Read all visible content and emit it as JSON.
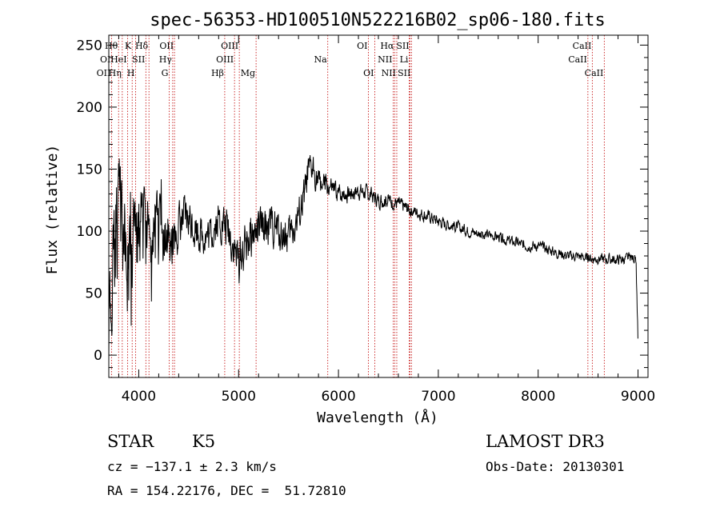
{
  "chart_data": {
    "type": "line",
    "title": "spec-56353-HD100510N522216B02_sp06-180.fits",
    "xlabel": "Wavelength (Å)",
    "ylabel": "Flux (relative)",
    "xlim": [
      3700,
      9100
    ],
    "ylim": [
      -18,
      258
    ],
    "xticks": [
      4000,
      5000,
      6000,
      7000,
      8000,
      9000
    ],
    "yticks": [
      0,
      50,
      100,
      150,
      200,
      250
    ],
    "spectrum_anchors": {
      "x": [
        3700,
        3760,
        3800,
        3850,
        3900,
        3950,
        4000,
        4050,
        4100,
        4150,
        4200,
        4250,
        4300,
        4400,
        4500,
        4600,
        4700,
        4800,
        4900,
        5000,
        5100,
        5200,
        5300,
        5400,
        5500,
        5600,
        5650,
        5700,
        5750,
        5800,
        5900,
        6000,
        6100,
        6200,
        6300,
        6400,
        6500,
        6600,
        6700,
        6800,
        6900,
        7000,
        7100,
        7200,
        7300,
        7400,
        7500,
        7600,
        7700,
        7800,
        7900,
        8000,
        8100,
        8200,
        8300,
        8400,
        8500,
        8600,
        8700,
        8800,
        8900,
        8980,
        9000
      ],
      "y": [
        20,
        90,
        100,
        95,
        70,
        85,
        100,
        105,
        95,
        110,
        100,
        95,
        85,
        105,
        110,
        100,
        95,
        110,
        100,
        75,
        95,
        100,
        105,
        100,
        95,
        110,
        125,
        145,
        150,
        140,
        135,
        130,
        130,
        133,
        130,
        125,
        125,
        122,
        118,
        115,
        112,
        108,
        105,
        103,
        100,
        98,
        97,
        95,
        92,
        90,
        88,
        88,
        85,
        82,
        80,
        80,
        78,
        78,
        77,
        77,
        78,
        78,
        10
      ]
    },
    "noise_amplitude": {
      "x": [
        3700,
        3800,
        3900,
        4000,
        4100,
        4200,
        4300,
        4400,
        4600,
        4800,
        5000,
        5300,
        5600,
        5700,
        5800,
        6000,
        6400,
        6800,
        7500,
        8500,
        9000
      ],
      "y": [
        30,
        45,
        40,
        35,
        30,
        25,
        22,
        18,
        15,
        15,
        18,
        15,
        15,
        14,
        10,
        7,
        6,
        5,
        4,
        4,
        4
      ]
    },
    "emission_lines": [
      {
        "label": "Hθ",
        "wavelength": 3798,
        "row": 1
      },
      {
        "label": "K",
        "wavelength": 3934,
        "row": 1
      },
      {
        "label": "Hδ",
        "wavelength": 4102,
        "row": 1
      },
      {
        "label": "OII",
        "wavelength": 4358,
        "row": 1
      },
      {
        "label": "OIII",
        "wavelength": 5007,
        "row": 1
      },
      {
        "label": "OI",
        "wavelength": 6300,
        "row": 1
      },
      {
        "label": "Hα",
        "wavelength": 6563,
        "row": 1
      },
      {
        "label": "SII",
        "wavelength": 6717,
        "row": 1
      },
      {
        "label": "CaII",
        "wavelength": 8542,
        "row": 1
      },
      {
        "label": "OI",
        "wavelength": 3727,
        "row": 2
      },
      {
        "label": "HeI",
        "wavelength": 3889,
        "row": 2
      },
      {
        "label": "SII",
        "wavelength": 4071,
        "row": 2
      },
      {
        "label": "Hγ",
        "wavelength": 4340,
        "row": 2
      },
      {
        "label": "OIII",
        "wavelength": 4959,
        "row": 2
      },
      {
        "label": "Na",
        "wavelength": 5893,
        "row": 2
      },
      {
        "label": "NII",
        "wavelength": 6548,
        "row": 2
      },
      {
        "label": "Li",
        "wavelength": 6708,
        "row": 2
      },
      {
        "label": "CaII",
        "wavelength": 8498,
        "row": 2
      },
      {
        "label": "OII",
        "wavelength": 3727,
        "row": 3
      },
      {
        "label": "Hη",
        "wavelength": 3835,
        "row": 3
      },
      {
        "label": "H",
        "wavelength": 3968,
        "row": 3
      },
      {
        "label": "G",
        "wavelength": 4304,
        "row": 3
      },
      {
        "label": "Hβ",
        "wavelength": 4861,
        "row": 3
      },
      {
        "label": "Mg",
        "wavelength": 5175,
        "row": 3
      },
      {
        "label": "OI",
        "wavelength": 6364,
        "row": 3
      },
      {
        "label": "NII",
        "wavelength": 6584,
        "row": 3
      },
      {
        "label": "SII",
        "wavelength": 6731,
        "row": 3
      },
      {
        "label": "CaII",
        "wavelength": 8662,
        "row": 3
      }
    ]
  },
  "info": {
    "class_label": "STAR",
    "subclass": "K5",
    "survey": "LAMOST DR3",
    "cz": "cz = −137.1 ± 2.3 km/s",
    "obs_date": "Obs-Date: 20130301",
    "radec": "RA = 154.22176, DEC =  51.72810"
  }
}
